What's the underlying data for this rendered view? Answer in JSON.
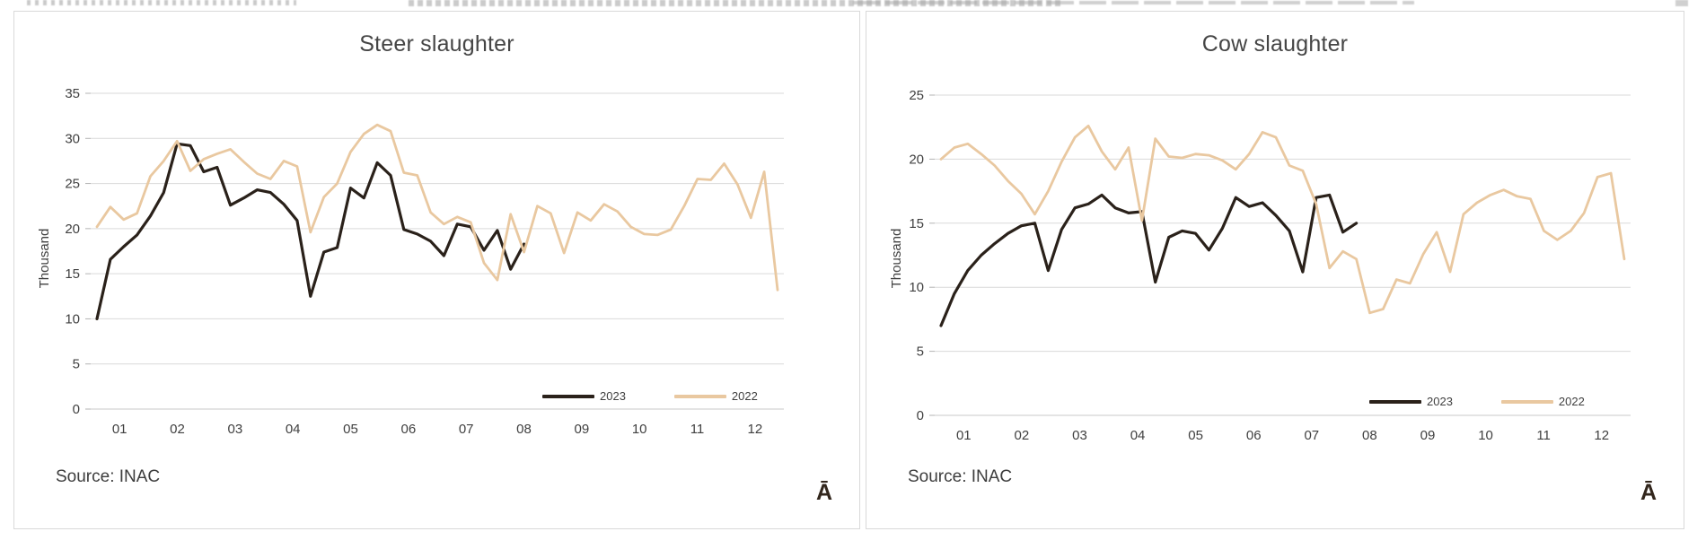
{
  "page": {
    "kind": "two side-by-side Excel-style line charts",
    "colors": {
      "series_2023": "#2A211A",
      "series_2022": "#E9C8A0",
      "gridline": "#D9D9D9",
      "axis_line": "#C9C9C9",
      "tick_label": "#404040",
      "title_text": "#454545",
      "panel_border": "#D9D9D9"
    }
  },
  "chart_data": [
    {
      "type": "line",
      "title": "Steer slaughter",
      "ylabel": "Thousand",
      "xlabel": "",
      "source": "Source: INAC",
      "corner_glyph": "Ā",
      "x_tick_labels": [
        "01",
        "02",
        "03",
        "04",
        "05",
        "06",
        "07",
        "08",
        "09",
        "10",
        "11",
        "12"
      ],
      "x_granularity": "weekly, weeks 1-52 spread across months 01-12",
      "ylim": [
        0,
        35
      ],
      "ytick_step": 5,
      "grid": true,
      "legend_position": "inside-bottom-right",
      "weeks": 52,
      "series": [
        {
          "name": "2023",
          "color": "#2A211A",
          "stroke_width": 3.2,
          "values": [
            10.0,
            16.6,
            18.0,
            19.3,
            21.4,
            24.0,
            29.4,
            29.2,
            26.3,
            26.8,
            22.6,
            23.4,
            24.3,
            24.0,
            22.7,
            20.9,
            12.5,
            17.4,
            17.9,
            24.5,
            23.4,
            27.3,
            25.9,
            19.9,
            19.4,
            18.6,
            17.0,
            20.5,
            20.2,
            17.6,
            19.8,
            15.5,
            18.3
          ]
        },
        {
          "name": "2022",
          "color": "#E9C8A0",
          "stroke_width": 2.8,
          "values": [
            20.2,
            22.4,
            21.0,
            21.7,
            25.8,
            27.5,
            29.7,
            26.4,
            27.7,
            28.3,
            28.8,
            27.4,
            26.1,
            25.5,
            27.5,
            26.9,
            19.6,
            23.5,
            25.0,
            28.5,
            30.5,
            31.5,
            30.8,
            26.2,
            25.9,
            21.8,
            20.5,
            21.3,
            20.7,
            16.2,
            14.3,
            21.6,
            17.4,
            22.5,
            21.7,
            17.3,
            21.8,
            20.9,
            22.7,
            21.9,
            20.2,
            19.4,
            19.3,
            19.9,
            22.5,
            25.5,
            25.4,
            27.2,
            24.9,
            21.2,
            26.3,
            13.2
          ]
        }
      ]
    },
    {
      "type": "line",
      "title": "Cow slaughter",
      "ylabel": "Thousand",
      "xlabel": "",
      "source": "Source: INAC",
      "corner_glyph": "Ā",
      "x_tick_labels": [
        "01",
        "02",
        "03",
        "04",
        "05",
        "06",
        "07",
        "08",
        "09",
        "10",
        "11",
        "12"
      ],
      "x_granularity": "weekly, weeks 1-52 spread across months 01-12",
      "ylim": [
        0,
        25
      ],
      "ytick_step": 5,
      "grid": true,
      "legend_position": "inside-bottom-right",
      "weeks": 52,
      "series": [
        {
          "name": "2023",
          "color": "#2A211A",
          "stroke_width": 3.2,
          "values": [
            7.0,
            9.5,
            11.3,
            12.5,
            13.4,
            14.2,
            14.8,
            15.0,
            11.3,
            14.5,
            16.2,
            16.5,
            17.2,
            16.2,
            15.8,
            15.9,
            10.4,
            13.9,
            14.4,
            14.2,
            12.9,
            14.6,
            17.0,
            16.3,
            16.6,
            15.6,
            14.4,
            11.2,
            17.0,
            17.2,
            14.3,
            15.0
          ]
        },
        {
          "name": "2022",
          "color": "#E9C8A0",
          "stroke_width": 2.8,
          "values": [
            20.0,
            20.9,
            21.2,
            20.4,
            19.5,
            18.3,
            17.3,
            15.7,
            17.5,
            19.8,
            21.7,
            22.6,
            20.6,
            19.2,
            20.9,
            15.2,
            21.6,
            20.2,
            20.1,
            20.4,
            20.3,
            19.9,
            19.2,
            20.4,
            22.1,
            21.7,
            19.5,
            19.1,
            16.5,
            11.5,
            12.8,
            12.2,
            8.0,
            8.3,
            10.6,
            10.3,
            12.6,
            14.3,
            11.2,
            15.7,
            16.6,
            17.2,
            17.6,
            17.1,
            16.9,
            14.4,
            13.7,
            14.4,
            15.8,
            18.6,
            18.9,
            12.2
          ]
        }
      ]
    }
  ]
}
